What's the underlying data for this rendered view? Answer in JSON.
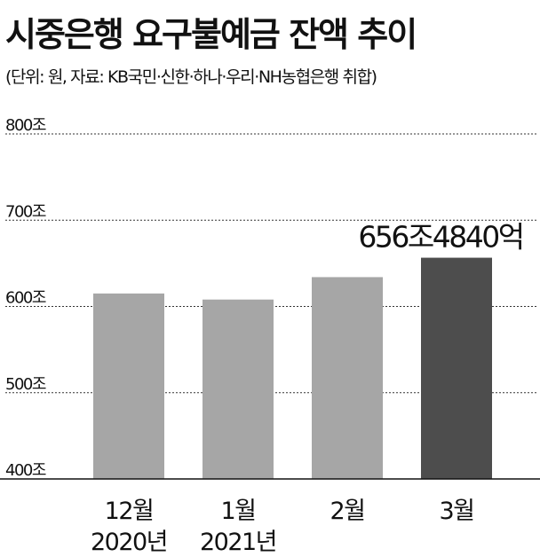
{
  "title": "시중은행 요구불예금 잔액 추이",
  "subtitle": "(단위: 원, 자료: KB국민·신한·하나·우리·NH농협은행 취합)",
  "colors": {
    "bar": "#a6a6a6",
    "bar_highlight": "#4d4d4d",
    "grid": "#333333"
  },
  "chart_data": {
    "type": "bar",
    "categories": [
      "12월\n2020년",
      "1월\n2021년",
      "2월",
      "3월"
    ],
    "values": [
      615,
      608,
      634,
      656.484
    ],
    "ylim": [
      400,
      800
    ],
    "yticks": [
      400,
      500,
      600,
      700,
      800
    ],
    "ytick_labels": [
      "400조",
      "500조",
      "600조",
      "700조",
      "800조"
    ],
    "highlight_index": 3,
    "annotations": [
      {
        "index": 3,
        "text": "656조4840억"
      }
    ],
    "grid": true
  }
}
